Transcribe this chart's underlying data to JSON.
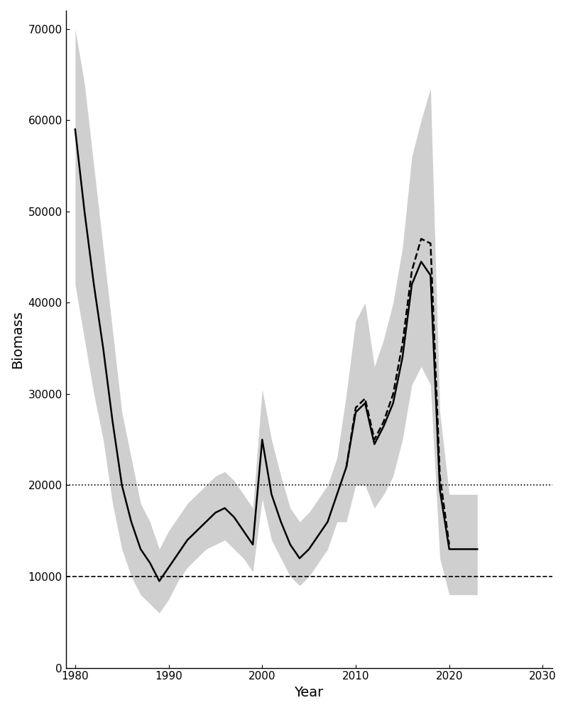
{
  "years": [
    1980,
    1981,
    1982,
    1983,
    1984,
    1985,
    1986,
    1987,
    1988,
    1989,
    1990,
    1991,
    1992,
    1993,
    1994,
    1995,
    1996,
    1997,
    1998,
    1999,
    2000,
    2001,
    2002,
    2003,
    2004,
    2005,
    2006,
    2007,
    2008,
    2009,
    2010,
    2011,
    2012,
    2013,
    2014,
    2015,
    2016,
    2017,
    2018,
    2019,
    2020,
    2021,
    2022,
    2023
  ],
  "ssb": [
    59000,
    50000,
    42000,
    35000,
    27000,
    20000,
    16000,
    13000,
    11500,
    9500,
    11000,
    12500,
    14000,
    15000,
    16000,
    17000,
    17500,
    16500,
    15000,
    13500,
    25000,
    19000,
    16000,
    13500,
    12000,
    13000,
    14500,
    16000,
    19000,
    22000,
    28000,
    29000,
    24500,
    26500,
    29000,
    34000,
    42000,
    44500,
    43000,
    19500,
    13000,
    13000,
    13000,
    13000
  ],
  "ssb_lo": [
    42000,
    36000,
    30000,
    25000,
    18000,
    13000,
    10000,
    8000,
    7000,
    6000,
    7500,
    9500,
    11000,
    12000,
    13000,
    13500,
    14000,
    13000,
    12000,
    10500,
    18500,
    14000,
    12000,
    10000,
    9000,
    10000,
    11500,
    13000,
    16000,
    16000,
    20000,
    20000,
    17500,
    19000,
    21000,
    25000,
    31000,
    33000,
    31000,
    12000,
    8000,
    8000,
    8000,
    8000
  ],
  "ssb_hi": [
    70000,
    64000,
    55000,
    46000,
    37000,
    28000,
    23000,
    18000,
    16000,
    13000,
    15000,
    16500,
    18000,
    19000,
    20000,
    21000,
    21500,
    20500,
    19000,
    17500,
    30500,
    25000,
    21000,
    17500,
    16000,
    17000,
    18500,
    20000,
    23000,
    30000,
    38000,
    40000,
    33000,
    36000,
    40000,
    46000,
    56000,
    60000,
    63500,
    28000,
    19000,
    19000,
    19000,
    19000
  ],
  "ssb2": [
    null,
    null,
    null,
    null,
    null,
    null,
    null,
    null,
    null,
    null,
    null,
    null,
    null,
    null,
    null,
    null,
    null,
    null,
    null,
    null,
    null,
    null,
    null,
    null,
    null,
    null,
    null,
    null,
    null,
    null,
    null,
    null,
    null,
    null,
    null,
    null,
    null,
    null,
    null,
    null,
    null,
    null,
    null,
    null
  ],
  "ssb2_years": [
    2009,
    2010,
    2011,
    2012,
    2013,
    2014,
    2015,
    2016,
    2017,
    2018,
    2019,
    2020
  ],
  "ssb2_vals": [
    22000,
    28500,
    29500,
    25000,
    27000,
    30000,
    35500,
    43500,
    47000,
    46500,
    21000,
    13500
  ],
  "hline_dashed": 10000,
  "hline_dotted": 20000,
  "xlim": [
    1979,
    2031
  ],
  "ylim": [
    0,
    72000
  ],
  "xlabel": "Year",
  "ylabel": "Biomass",
  "xticks": [
    1980,
    1990,
    2000,
    2010,
    2020,
    2030
  ],
  "yticks": [
    0,
    10000,
    20000,
    30000,
    40000,
    50000,
    60000,
    70000
  ],
  "ytick_labels": [
    "0",
    "10000",
    "20000",
    "30000",
    "40000",
    "50000",
    "60000",
    "70000"
  ],
  "fill_color": "#bbbbbb",
  "fill_alpha": 0.7,
  "line_color": "#000000",
  "line_width": 1.8,
  "background_color": "#ffffff"
}
